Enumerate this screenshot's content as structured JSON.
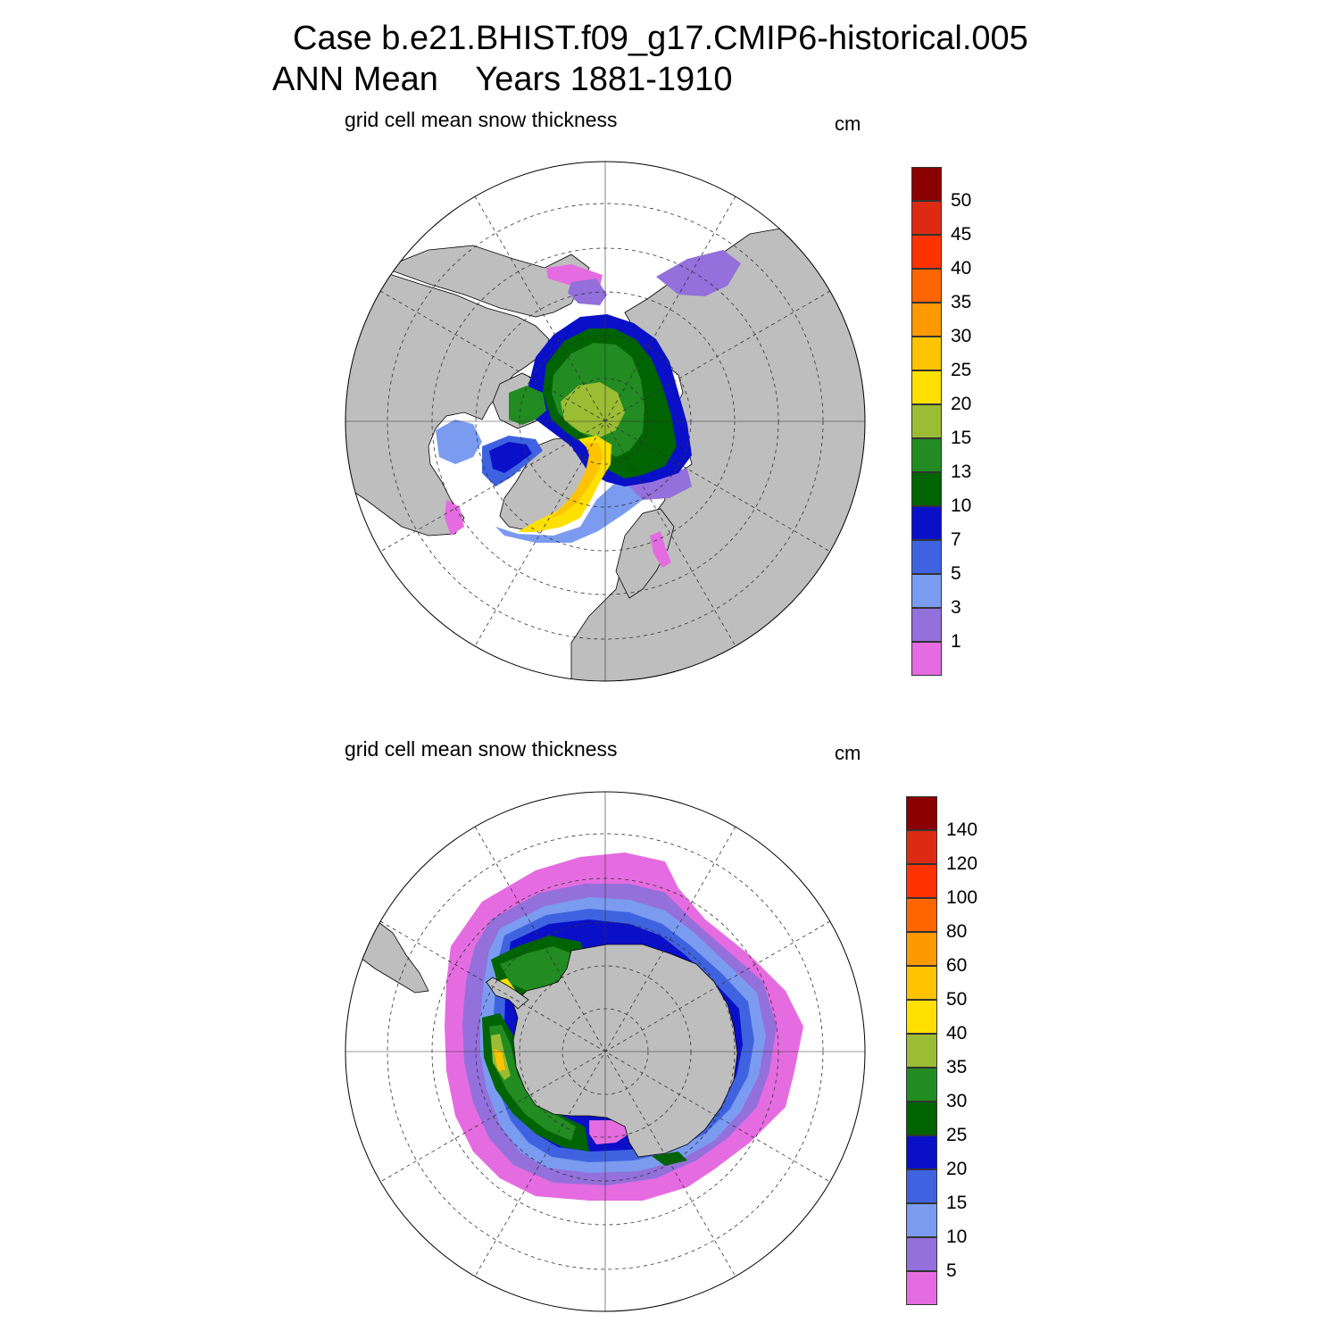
{
  "header": {
    "line1": "Case b.e21.BHIST.f09_g17.CMIP6-historical.005",
    "line2": "ANN Mean    Years 1881-1910"
  },
  "panels": [
    {
      "id": "north",
      "hemisphere": "Northern Hemisphere polar stereographic",
      "subtitle": "grid cell mean snow thickness",
      "unit": "cm",
      "colorbar": {
        "labels": [
          "50",
          "45",
          "40",
          "35",
          "30",
          "25",
          "20",
          "15",
          "13",
          "10",
          "7",
          "5",
          "3",
          "1"
        ],
        "colors": [
          "#8b0000",
          "#dd2a13",
          "#ff3300",
          "#ff6600",
          "#ff9900",
          "#ffc400",
          "#ffe000",
          "#9bbd34",
          "#228b22",
          "#006400",
          "#0a10c8",
          "#3f63e0",
          "#7a9bf0",
          "#9370db",
          "#e56ce0"
        ]
      }
    },
    {
      "id": "south",
      "hemisphere": "Southern Hemisphere polar stereographic",
      "subtitle": "grid cell mean snow thickness",
      "unit": "cm",
      "colorbar": {
        "labels": [
          "140",
          "120",
          "100",
          "80",
          "60",
          "50",
          "40",
          "35",
          "30",
          "25",
          "20",
          "15",
          "10",
          "5"
        ],
        "colors": [
          "#8b0000",
          "#dd2a13",
          "#ff3300",
          "#ff6600",
          "#ff9900",
          "#ffc400",
          "#ffe000",
          "#9bbd34",
          "#228b22",
          "#006400",
          "#0a10c8",
          "#3f63e0",
          "#7a9bf0",
          "#9370db",
          "#e56ce0"
        ]
      }
    }
  ],
  "colors": {
    "land": "#bebebe",
    "ocean": "#ffffff",
    "grid": "#333333"
  }
}
